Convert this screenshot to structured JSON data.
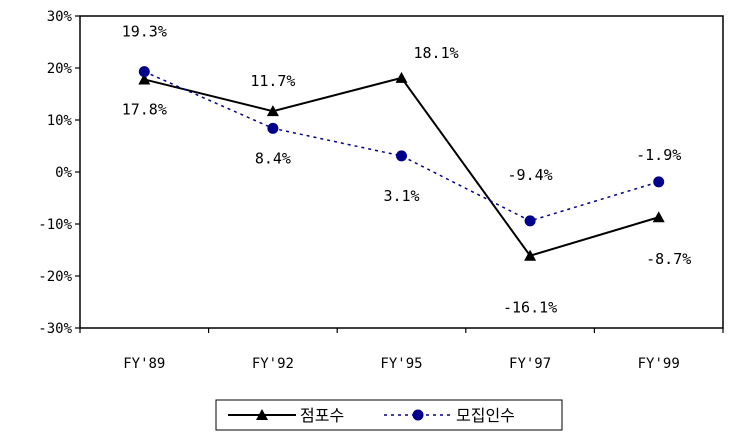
{
  "chart_data": {
    "type": "line",
    "title": "",
    "xlabel": "",
    "ylabel": "",
    "categories": [
      "FY'89",
      "FY'92",
      "FY'95",
      "FY'97",
      "FY'99"
    ],
    "ylim": [
      -30,
      30
    ],
    "yticks": [
      30,
      20,
      10,
      0,
      -10,
      -20,
      -30
    ],
    "ytick_labels": [
      "30%",
      "20%",
      "10%",
      "0%",
      "-10%",
      "-20%",
      "-30%"
    ],
    "grid": false,
    "legend_position": "bottom",
    "series": [
      {
        "name": "점포수",
        "values": [
          17.8,
          11.7,
          18.1,
          -16.1,
          -8.7
        ],
        "labels": [
          "17.8%",
          "11.7%",
          "18.1%",
          "-16.1%",
          "-8.7%"
        ],
        "color": "#000000",
        "line_style": "solid",
        "marker": "triangle-icon"
      },
      {
        "name": "모집인수",
        "values": [
          19.3,
          8.4,
          3.1,
          -9.4,
          -1.9
        ],
        "labels": [
          "19.3%",
          "8.4%",
          "3.1%",
          "-9.4%",
          "-1.9%"
        ],
        "color": "#00008B",
        "line_style": "dotted",
        "marker": "circle-icon"
      }
    ]
  }
}
